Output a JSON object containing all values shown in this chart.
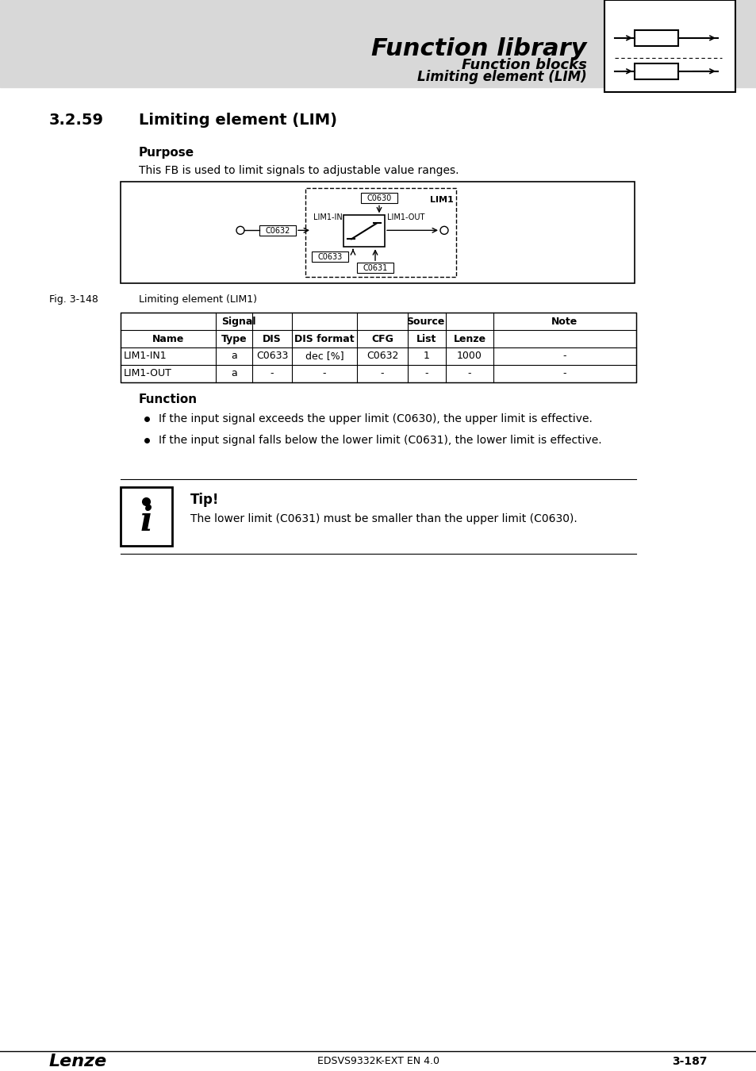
{
  "page_bg": "#ffffff",
  "header_bg": "#d8d8d8",
  "header_title": "Function library",
  "header_sub1": "Function blocks",
  "header_sub2": "Limiting element (LIM)",
  "section_number": "3.2.59",
  "section_title": "Limiting element (LIM)",
  "purpose_label": "Purpose",
  "purpose_text": "This FB is used to limit signals to adjustable value ranges.",
  "fig_label": "Fig. 3-148",
  "fig_caption": "Limiting element (LIM1)",
  "table_header_signal": "Signal",
  "table_header_source": "Source",
  "table_header_note": "Note",
  "table_col_headers": [
    "Name",
    "Type",
    "DIS",
    "DIS format",
    "CFG",
    "List",
    "Lenze",
    ""
  ],
  "table_rows": [
    [
      "LIM1-IN1",
      "a",
      "C0633",
      "dec [%]",
      "C0632",
      "1",
      "1000",
      "-"
    ],
    [
      "LIM1-OUT",
      "a",
      "-",
      "-",
      "-",
      "-",
      "-",
      "-"
    ]
  ],
  "function_label": "Function",
  "function_bullets": [
    "If the input signal exceeds the upper limit (C0630), the upper limit is effective.",
    "If the input signal falls below the lower limit (C0631), the lower limit is effective."
  ],
  "tip_label": "Tip!",
  "tip_text": "The lower limit (C0631) must be smaller than the upper limit (C0630).",
  "footer_left": "Lenze",
  "footer_center": "EDSVS9332K-EXT EN 4.0",
  "footer_right": "3-187"
}
